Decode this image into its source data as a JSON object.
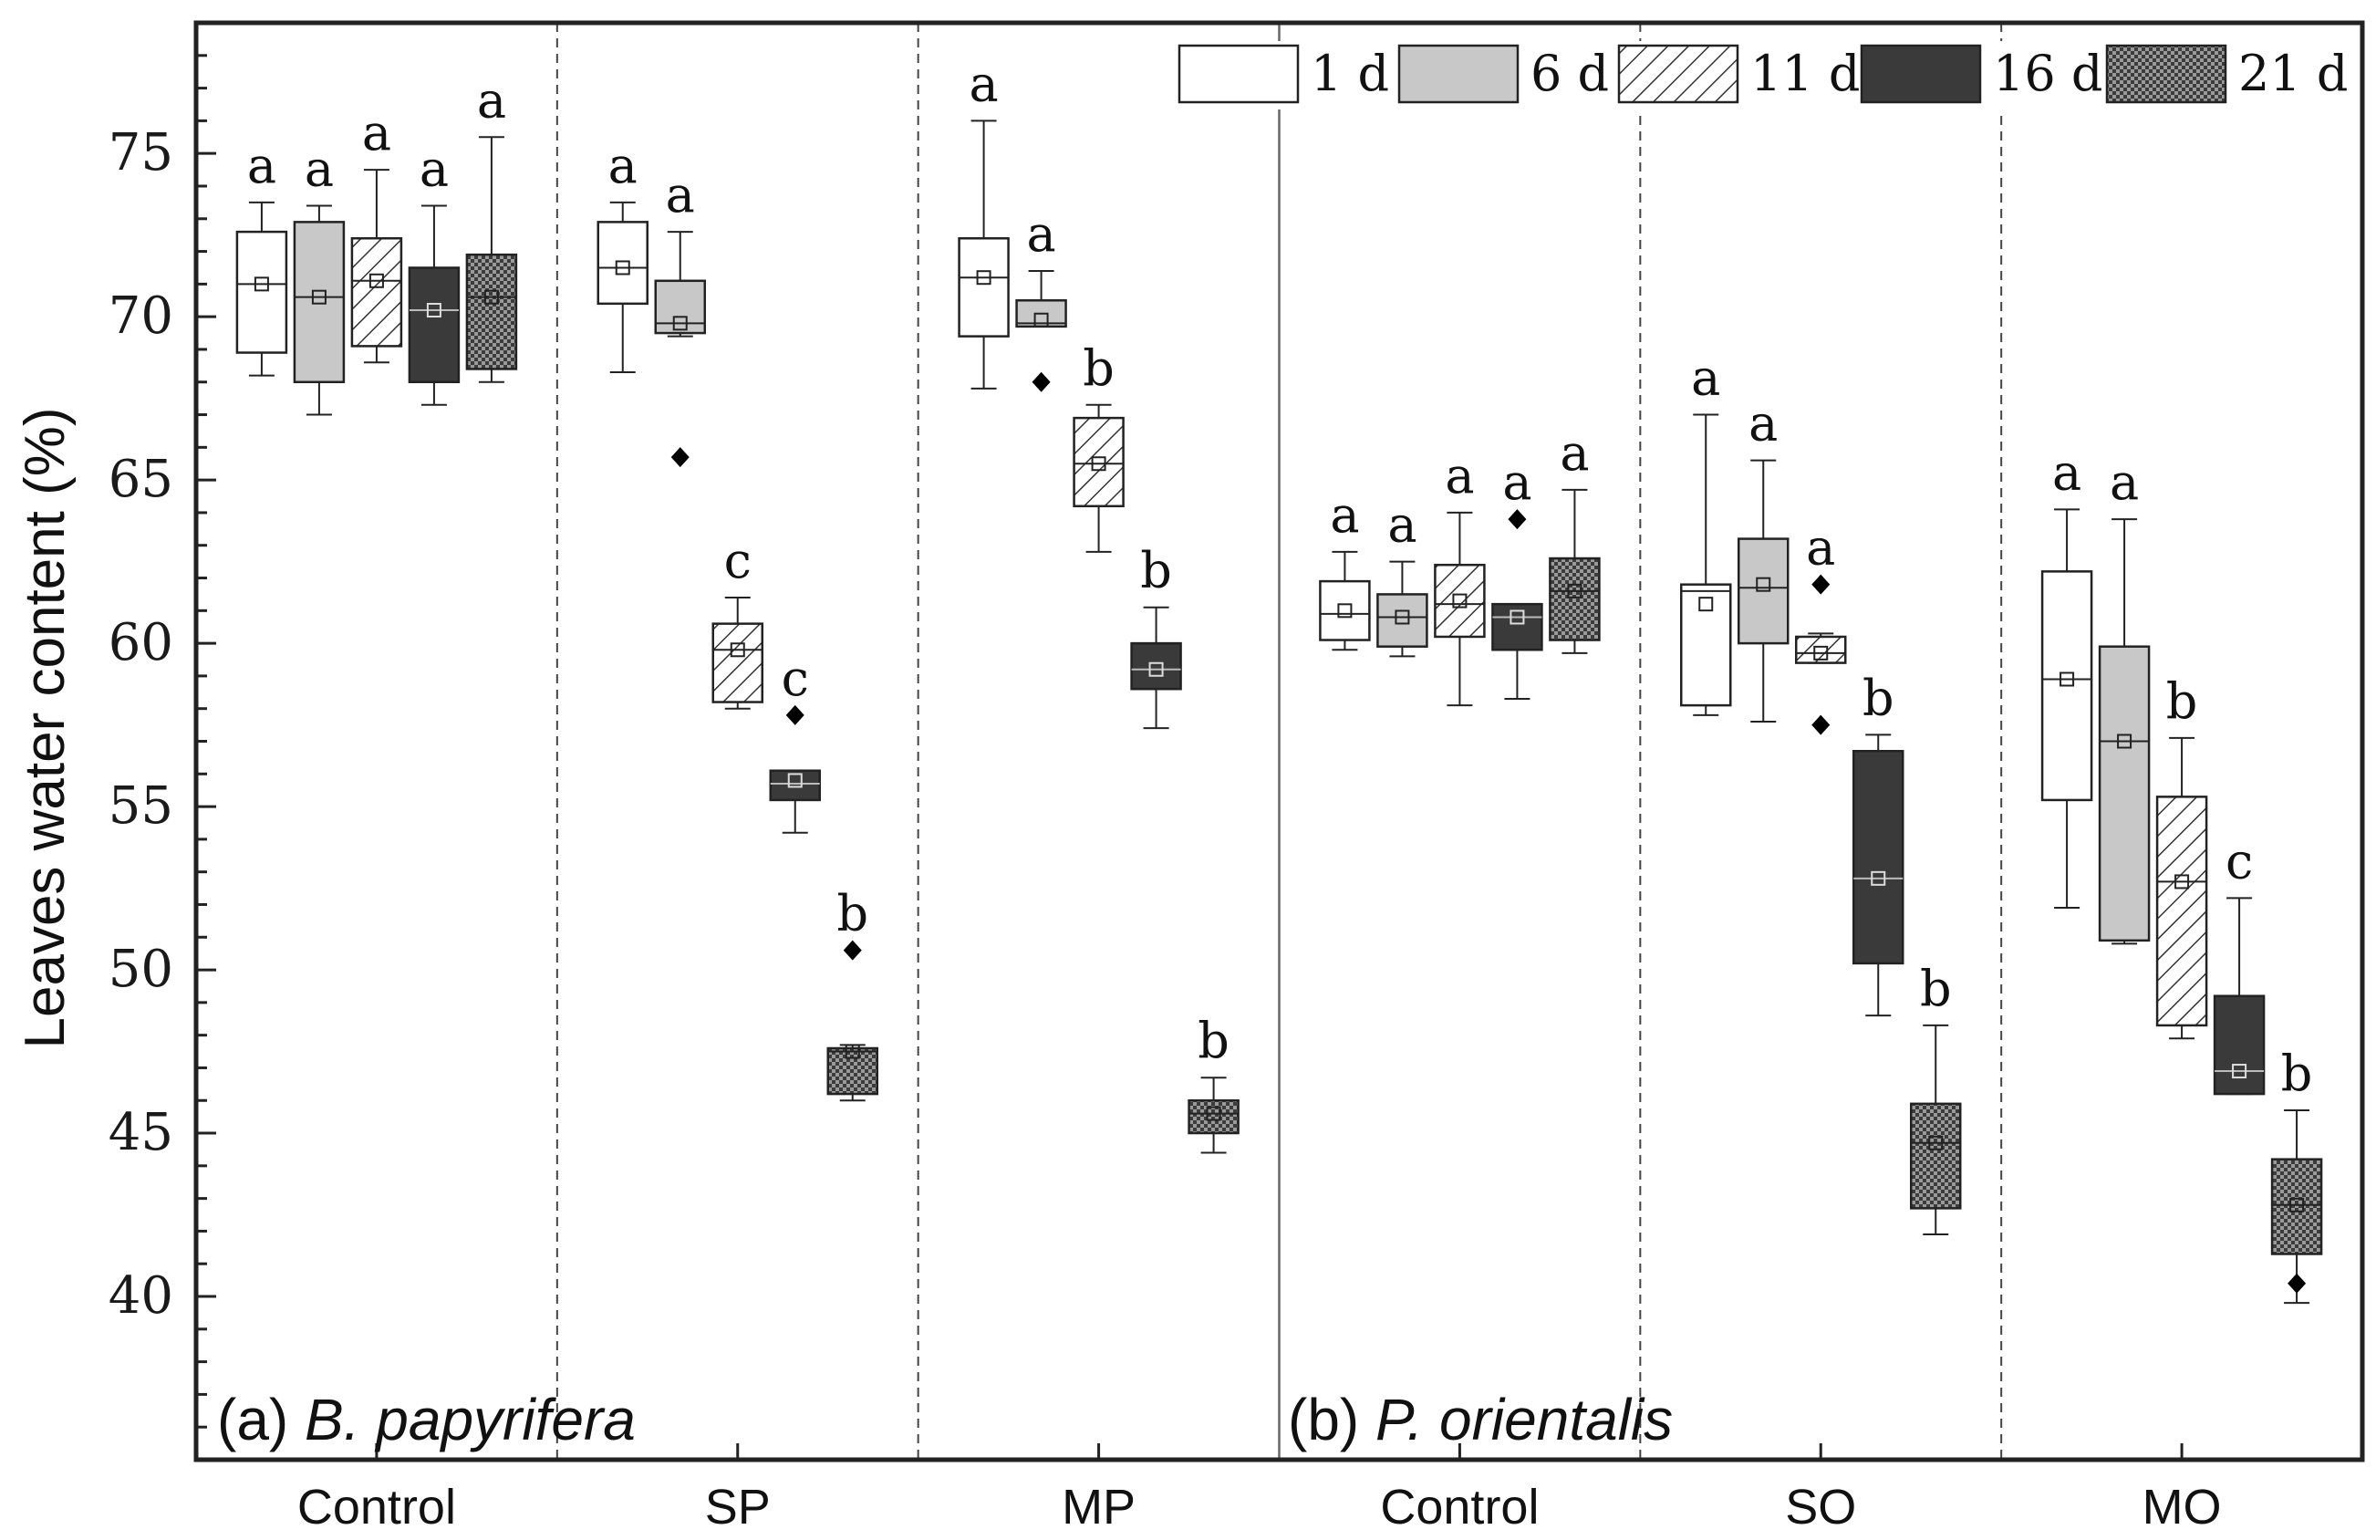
{
  "chart_data": {
    "type": "box",
    "ylabel": "Leaves water content (%)",
    "ylim": [
      35,
      79
    ],
    "yticks": [
      40,
      45,
      50,
      55,
      60,
      65,
      70,
      75
    ],
    "categories": [
      "Control",
      "SP",
      "MP",
      "Control",
      "SO",
      "MO"
    ],
    "panels": [
      {
        "prefix": "(a) ",
        "species": "B. papyrifera",
        "categories": [
          0,
          1,
          2
        ]
      },
      {
        "prefix": "(b) ",
        "species": "P. orientalis",
        "categories": [
          3,
          4,
          5
        ]
      }
    ],
    "series_names": [
      "1 d",
      "6 d",
      "11 d",
      "16 d",
      "21 d"
    ],
    "series_fills": [
      "white",
      "lightgray",
      "hatch",
      "dark",
      "checker"
    ],
    "colors": {
      "white": "#ffffff",
      "lightgray": "#c8c8c8",
      "dark": "#3a3a3a",
      "axis": "#222222"
    },
    "groups": [
      {
        "category": "Control",
        "boxes": [
          {
            "series": "1 d",
            "whisker_low": 68.2,
            "q1": 68.9,
            "median": 71.0,
            "mean": 71.0,
            "q3": 72.6,
            "whisker_high": 73.5,
            "outliers": [],
            "letter": "a"
          },
          {
            "series": "6 d",
            "whisker_low": 67.0,
            "q1": 68.0,
            "median": 70.6,
            "mean": 70.6,
            "q3": 72.9,
            "whisker_high": 73.4,
            "outliers": [],
            "letter": "a"
          },
          {
            "series": "11 d",
            "whisker_low": 68.6,
            "q1": 69.1,
            "median": 71.1,
            "mean": 71.1,
            "q3": 72.4,
            "whisker_high": 74.5,
            "outliers": [],
            "letter": "a"
          },
          {
            "series": "16 d",
            "whisker_low": 67.3,
            "q1": 68.0,
            "median": 70.2,
            "mean": 70.2,
            "q3": 71.5,
            "whisker_high": 73.4,
            "outliers": [],
            "letter": "a"
          },
          {
            "series": "21 d",
            "whisker_low": 68.0,
            "q1": 68.4,
            "median": 70.6,
            "mean": 70.6,
            "q3": 71.9,
            "whisker_high": 75.5,
            "outliers": [],
            "letter": "a"
          }
        ]
      },
      {
        "category": "SP",
        "boxes": [
          {
            "series": "1 d",
            "whisker_low": 68.3,
            "q1": 70.4,
            "median": 71.5,
            "mean": 71.5,
            "q3": 72.9,
            "whisker_high": 73.5,
            "outliers": [],
            "letter": "a"
          },
          {
            "series": "6 d",
            "whisker_low": 69.4,
            "q1": 69.5,
            "median": 69.8,
            "mean": 69.8,
            "q3": 71.1,
            "whisker_high": 72.6,
            "outliers": [
              65.7
            ],
            "letter": "a"
          },
          {
            "series": "11 d",
            "whisker_low": 58.0,
            "q1": 58.2,
            "median": 59.8,
            "mean": 59.8,
            "q3": 60.6,
            "whisker_high": 61.4,
            "outliers": [],
            "letter": "c"
          },
          {
            "series": "16 d",
            "whisker_low": 54.2,
            "q1": 55.2,
            "median": 55.7,
            "mean": 55.8,
            "q3": 56.1,
            "whisker_high": 56.1,
            "outliers": [
              57.8
            ],
            "letter": "c"
          },
          {
            "series": "21 d",
            "whisker_low": 46.0,
            "q1": 46.2,
            "median": 47.5,
            "mean": 47.5,
            "q3": 47.6,
            "whisker_high": 47.7,
            "outliers": [
              50.6
            ],
            "letter": "b"
          }
        ]
      },
      {
        "category": "MP",
        "boxes": [
          {
            "series": "1 d",
            "whisker_low": 67.8,
            "q1": 69.4,
            "median": 71.2,
            "mean": 71.2,
            "q3": 72.4,
            "whisker_high": 76.0,
            "outliers": [],
            "letter": "a"
          },
          {
            "series": "6 d",
            "whisker_low": 69.7,
            "q1": 69.7,
            "median": 69.8,
            "mean": 69.9,
            "q3": 70.5,
            "whisker_high": 71.4,
            "outliers": [
              68.0
            ],
            "letter": "a"
          },
          {
            "series": "11 d",
            "whisker_low": 62.8,
            "q1": 64.2,
            "median": 65.5,
            "mean": 65.5,
            "q3": 66.9,
            "whisker_high": 67.3,
            "outliers": [],
            "letter": "b"
          },
          {
            "series": "16 d",
            "whisker_low": 57.4,
            "q1": 58.6,
            "median": 59.2,
            "mean": 59.2,
            "q3": 60.0,
            "whisker_high": 61.1,
            "outliers": [],
            "letter": "b"
          },
          {
            "series": "21 d",
            "whisker_low": 44.4,
            "q1": 45.0,
            "median": 45.6,
            "mean": 45.6,
            "q3": 46.0,
            "whisker_high": 46.7,
            "outliers": [],
            "letter": "b"
          }
        ]
      },
      {
        "category": "Control",
        "boxes": [
          {
            "series": "1 d",
            "whisker_low": 59.8,
            "q1": 60.1,
            "median": 60.9,
            "mean": 61.0,
            "q3": 61.9,
            "whisker_high": 62.8,
            "outliers": [],
            "letter": "a"
          },
          {
            "series": "6 d",
            "whisker_low": 59.6,
            "q1": 59.9,
            "median": 60.8,
            "mean": 60.8,
            "q3": 61.5,
            "whisker_high": 62.5,
            "outliers": [],
            "letter": "a"
          },
          {
            "series": "11 d",
            "whisker_low": 58.1,
            "q1": 60.2,
            "median": 61.2,
            "mean": 61.3,
            "q3": 62.4,
            "whisker_high": 64.0,
            "outliers": [],
            "letter": "a"
          },
          {
            "series": "16 d",
            "whisker_low": 58.3,
            "q1": 59.8,
            "median": 60.8,
            "mean": 60.8,
            "q3": 61.2,
            "whisker_high": 61.2,
            "outliers": [
              63.8
            ],
            "letter": "a"
          },
          {
            "series": "21 d",
            "whisker_low": 59.7,
            "q1": 60.1,
            "median": 61.6,
            "mean": 61.6,
            "q3": 62.6,
            "whisker_high": 64.7,
            "outliers": [],
            "letter": "a"
          }
        ]
      },
      {
        "category": "SO",
        "boxes": [
          {
            "series": "1 d",
            "whisker_low": 57.8,
            "q1": 58.1,
            "median": 61.6,
            "mean": 61.2,
            "q3": 61.8,
            "whisker_high": 67.0,
            "outliers": [],
            "letter": "a"
          },
          {
            "series": "6 d",
            "whisker_low": 57.6,
            "q1": 60.0,
            "median": 61.7,
            "mean": 61.8,
            "q3": 63.2,
            "whisker_high": 65.6,
            "outliers": [],
            "letter": "a"
          },
          {
            "series": "11 d",
            "whisker_low": 59.4,
            "q1": 59.4,
            "median": 59.7,
            "mean": 59.7,
            "q3": 60.2,
            "whisker_high": 60.3,
            "outliers": [
              61.8,
              57.5
            ],
            "letter": "a"
          },
          {
            "series": "16 d",
            "whisker_low": 48.6,
            "q1": 50.2,
            "median": 52.8,
            "mean": 52.8,
            "q3": 56.7,
            "whisker_high": 57.2,
            "outliers": [],
            "letter": "b"
          },
          {
            "series": "21 d",
            "whisker_low": 41.9,
            "q1": 42.7,
            "median": 44.7,
            "mean": 44.7,
            "q3": 45.9,
            "whisker_high": 48.3,
            "outliers": [],
            "letter": "b"
          }
        ]
      },
      {
        "category": "MO",
        "boxes": [
          {
            "series": "1 d",
            "whisker_low": 51.9,
            "q1": 55.2,
            "median": 58.9,
            "mean": 58.9,
            "q3": 62.2,
            "whisker_high": 64.1,
            "outliers": [],
            "letter": "a"
          },
          {
            "series": "6 d",
            "whisker_low": 50.8,
            "q1": 50.9,
            "median": 57.0,
            "mean": 57.0,
            "q3": 59.9,
            "whisker_high": 63.8,
            "outliers": [],
            "letter": "a"
          },
          {
            "series": "11 d",
            "whisker_low": 47.9,
            "q1": 48.3,
            "median": 52.7,
            "mean": 52.7,
            "q3": 55.3,
            "whisker_high": 57.1,
            "outliers": [],
            "letter": "b"
          },
          {
            "series": "16 d",
            "whisker_low": 46.2,
            "q1": 46.2,
            "median": 46.9,
            "mean": 46.9,
            "q3": 49.2,
            "whisker_high": 52.2,
            "outliers": [],
            "letter": "c"
          },
          {
            "series": "21 d",
            "whisker_low": 39.8,
            "q1": 41.3,
            "median": 42.8,
            "mean": 42.8,
            "q3": 44.2,
            "whisker_high": 45.7,
            "outliers": [
              40.4
            ],
            "letter": "b"
          }
        ]
      }
    ]
  }
}
